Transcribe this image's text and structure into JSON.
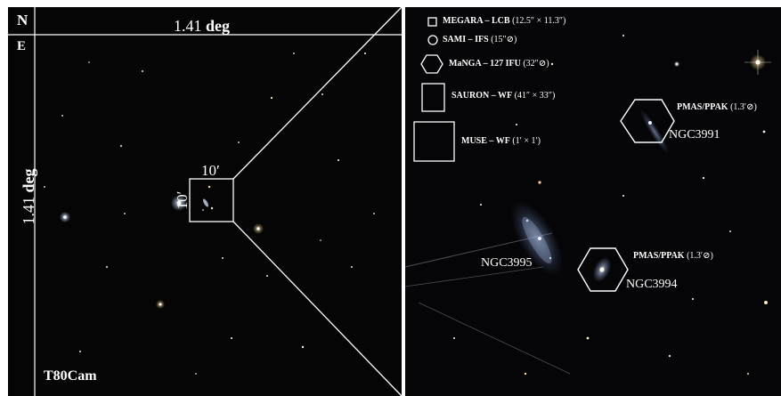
{
  "left_panel": {
    "north_label": "N",
    "east_label": "E",
    "width_label": "1.41",
    "width_unit": "deg",
    "height_label": "1.41",
    "height_unit": "deg",
    "zoom_box_label_h": "10′",
    "zoom_box_label_v": "10′",
    "camera_label": "T80Cam"
  },
  "legend": {
    "megara": {
      "name": "MEGARA – LCB",
      "size": "(12.5″ × 11.3″)"
    },
    "sami": {
      "name": "SAMI – IFS",
      "size": "(15″⊘)"
    },
    "manga": {
      "name": "MaNGA – 127 IFU",
      "size": "(32″⊘)"
    },
    "sauron": {
      "name": "SAURON – WF",
      "size": "(41″ × 33″)"
    },
    "muse": {
      "name": "MUSE – WF",
      "size": "(1′ × 1′)"
    }
  },
  "galaxies": {
    "ngc3991": {
      "name": "NGC3991",
      "pmas": "PMAS/PPAK",
      "pmas_size": "(1.3′⊘)"
    },
    "ngc3995": {
      "name": "NGC3995"
    },
    "ngc3994": {
      "name": "NGC3994",
      "pmas": "PMAS/PPAK",
      "pmas_size": "(1.3′⊘)"
    }
  },
  "colors": {
    "sky": "#050506",
    "overlay": "#ffffff"
  }
}
